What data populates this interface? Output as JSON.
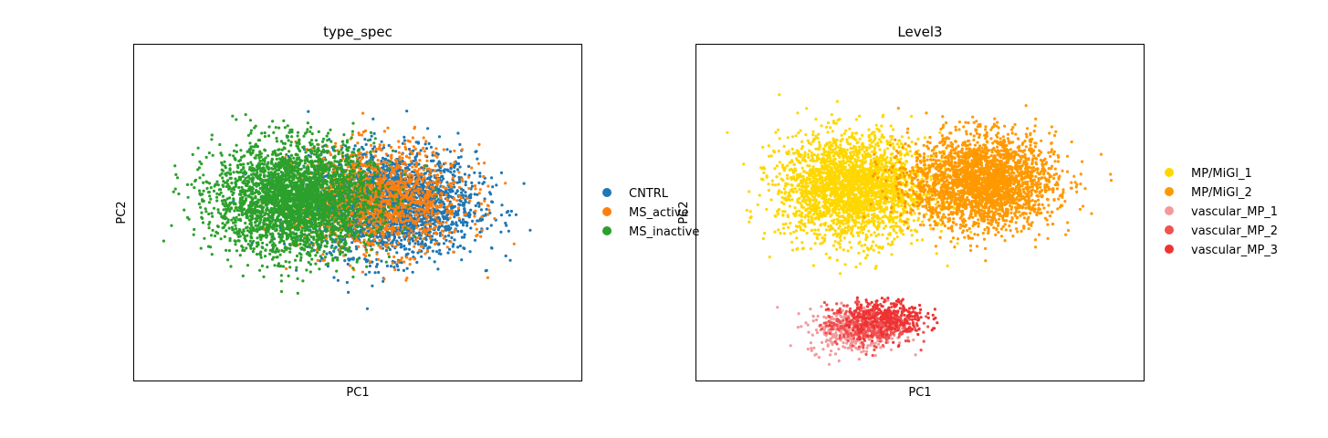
{
  "chart_data": [
    {
      "type": "scatter",
      "title": "type_spec",
      "xlabel": "PC1",
      "ylabel": "PC2",
      "xlim": [
        -10,
        10
      ],
      "ylim": [
        -10,
        10
      ],
      "grid": false,
      "ticks": false,
      "legend_placement": "right",
      "series": [
        {
          "name": "CNTRL",
          "color": "#1f77b4",
          "center": [
            1.5,
            0.5
          ],
          "spread": [
            3.4,
            2.8
          ],
          "approx_x_range": [
            -6,
            9
          ],
          "approx_y_range": [
            -9,
            7
          ]
        },
        {
          "name": "MS_active",
          "color": "#ff7f0e",
          "center": [
            1.0,
            0.8
          ],
          "spread": [
            3.4,
            2.8
          ],
          "approx_x_range": [
            -6,
            9
          ],
          "approx_y_range": [
            -9,
            7
          ]
        },
        {
          "name": "MS_inactive",
          "color": "#2ca02c",
          "center": [
            -2.8,
            0.8
          ],
          "spread": [
            3.2,
            3.0
          ],
          "approx_x_range": [
            -9,
            5
          ],
          "approx_y_range": [
            -9,
            6
          ]
        }
      ]
    },
    {
      "type": "scatter",
      "title": "Level3",
      "xlabel": "PC1",
      "ylabel": "PC2",
      "xlim": [
        -10,
        10
      ],
      "ylim": [
        -10,
        10
      ],
      "grid": false,
      "ticks": false,
      "legend_placement": "right",
      "series": [
        {
          "name": "MP/MiGl_1",
          "color": "#ffd700",
          "center": [
            -3.0,
            1.5
          ],
          "spread": [
            3.0,
            2.8
          ],
          "approx_x_range": [
            -9,
            4
          ],
          "approx_y_range": [
            -6,
            7
          ]
        },
        {
          "name": "MP/MiGl_2",
          "color": "#ff9900",
          "center": [
            2.8,
            1.8
          ],
          "spread": [
            2.9,
            2.5
          ],
          "approx_x_range": [
            -3,
            9
          ],
          "approx_y_range": [
            -5,
            7
          ]
        },
        {
          "name": "vascular_MP_1",
          "color": "#f4999b",
          "center": [
            -3.0,
            -7.0
          ],
          "spread": [
            1.8,
            1.2
          ],
          "approx_x_range": [
            -7,
            0
          ],
          "approx_y_range": [
            -10,
            -5
          ]
        },
        {
          "name": "vascular_MP_2",
          "color": "#f05151",
          "center": [
            -2.2,
            -6.6
          ],
          "spread": [
            1.8,
            1.1
          ],
          "approx_x_range": [
            -6,
            1
          ],
          "approx_y_range": [
            -9,
            -5
          ]
        },
        {
          "name": "vascular_MP_3",
          "color": "#ee3333",
          "center": [
            -1.5,
            -6.2
          ],
          "spread": [
            1.6,
            1.0
          ],
          "approx_x_range": [
            -5,
            2
          ],
          "approx_y_range": [
            -9,
            -5
          ]
        }
      ]
    }
  ]
}
